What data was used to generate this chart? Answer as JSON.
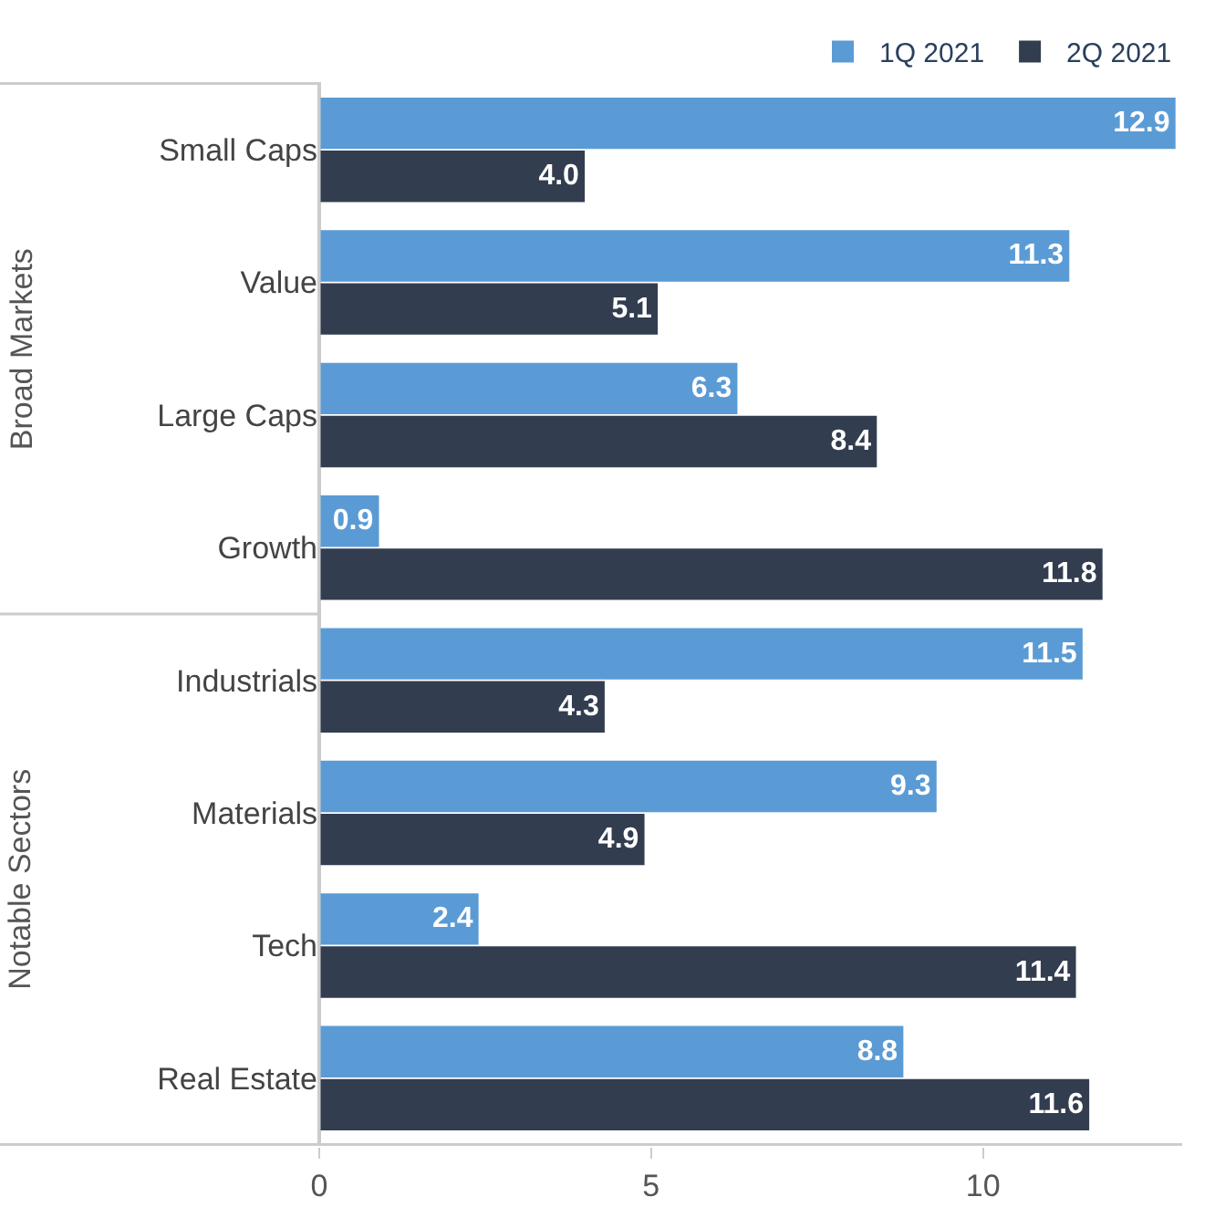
{
  "chart_data": {
    "type": "bar",
    "orientation": "horizontal",
    "categories": [
      "Small Caps",
      "Value",
      "Large Caps",
      "Growth",
      "Industrials",
      "Materials",
      "Tech",
      "Real Estate"
    ],
    "series": [
      {
        "name": "1Q 2021",
        "color": "#5b9bd5",
        "values": [
          12.9,
          11.3,
          6.3,
          0.9,
          11.5,
          9.3,
          2.4,
          8.8
        ],
        "value_labels": [
          "12.9",
          "11.3",
          "6.3",
          "0.9",
          "11.5",
          "9.3",
          "2.4",
          "8.8"
        ]
      },
      {
        "name": "2Q 2021",
        "color": "#333d50",
        "values": [
          4.0,
          5.1,
          8.4,
          11.8,
          4.3,
          4.9,
          11.4,
          11.6
        ],
        "value_labels": [
          "4.0",
          "5.1",
          "8.4",
          "11.8",
          "4.3",
          "4.9",
          "11.4",
          "11.6"
        ]
      }
    ],
    "annotations": [
      "Broad Markets",
      "Notable Sectors"
    ],
    "xlim": [
      0,
      13
    ],
    "xticks": [
      0,
      5,
      10
    ],
    "legend": "top right"
  }
}
